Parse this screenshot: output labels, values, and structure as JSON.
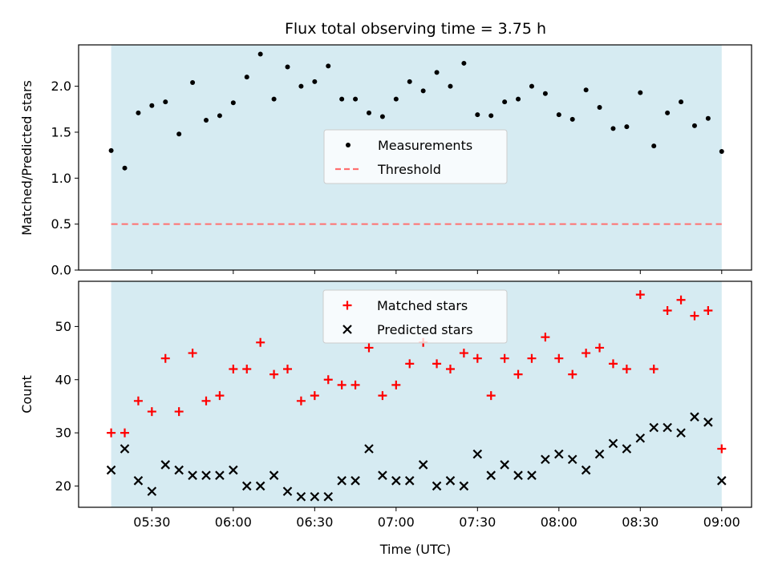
{
  "chart_data": {
    "type": "scatter",
    "title": "Flux total observing time = 3.75 h",
    "xlabel": "Time (UTC)",
    "x_tick_labels": [
      "05:30",
      "06:00",
      "06:30",
      "07:00",
      "07:30",
      "08:00",
      "08:30",
      "09:00"
    ],
    "x": [
      "05:15",
      "05:20",
      "05:25",
      "05:30",
      "05:35",
      "05:40",
      "05:45",
      "05:50",
      "05:55",
      "06:00",
      "06:05",
      "06:10",
      "06:15",
      "06:20",
      "06:25",
      "06:30",
      "06:35",
      "06:40",
      "06:45",
      "06:50",
      "06:55",
      "07:00",
      "07:05",
      "07:10",
      "07:15",
      "07:20",
      "07:25",
      "07:30",
      "07:35",
      "07:40",
      "07:45",
      "07:50",
      "07:55",
      "08:00",
      "08:05",
      "08:10",
      "08:15",
      "08:20",
      "08:25",
      "08:30",
      "08:35",
      "08:40",
      "08:45",
      "08:50",
      "08:55",
      "09:00"
    ],
    "xlim": [
      "05:03",
      "09:11"
    ],
    "observing_span": [
      "05:15",
      "09:00"
    ],
    "panels": [
      {
        "ylabel": "Matched/Predicted stars",
        "ylim": [
          0,
          2.45
        ],
        "y_ticks": [
          "0.0",
          "0.5",
          "1.0",
          "1.5",
          "2.0"
        ],
        "legend_position": "center",
        "series": [
          {
            "name": "Measurements",
            "marker": "dot",
            "color": "#000000",
            "values": [
              1.3,
              1.11,
              1.71,
              1.79,
              1.83,
              1.48,
              2.04,
              1.63,
              1.68,
              1.82,
              2.1,
              2.35,
              1.86,
              2.21,
              2.0,
              2.05,
              2.22,
              1.86,
              1.86,
              1.71,
              1.67,
              1.86,
              2.05,
              1.95,
              2.15,
              2.0,
              2.25,
              1.69,
              1.68,
              1.83,
              1.86,
              2.0,
              1.92,
              1.69,
              1.64,
              1.96,
              1.77,
              1.54,
              1.56,
              1.93,
              1.35,
              1.71,
              1.83,
              1.57,
              1.65,
              1.29
            ]
          },
          {
            "name": "Threshold",
            "marker": "dashed-line",
            "color": "#ff7070",
            "values": [
              0.5
            ]
          }
        ]
      },
      {
        "ylabel": "Count",
        "ylim": [
          16,
          58.5
        ],
        "y_ticks": [
          "20",
          "30",
          "40",
          "50"
        ],
        "legend_position": "upper center",
        "series": [
          {
            "name": "Matched stars",
            "marker": "plus",
            "color": "#ff0000",
            "values": [
              30,
              30,
              36,
              34,
              44,
              34,
              45,
              36,
              37,
              42,
              42,
              47,
              41,
              42,
              36,
              37,
              40,
              39,
              39,
              46,
              37,
              39,
              43,
              47,
              43,
              42,
              45,
              44,
              37,
              44,
              41,
              44,
              48,
              44,
              41,
              45,
              46,
              43,
              42,
              56,
              42,
              53,
              55,
              52,
              53,
              27
            ]
          },
          {
            "name": "Predicted stars",
            "marker": "x",
            "color": "#000000",
            "values": [
              23,
              27,
              21,
              19,
              24,
              23,
              22,
              22,
              22,
              23,
              20,
              20,
              22,
              19,
              18,
              18,
              18,
              21,
              21,
              27,
              22,
              21,
              21,
              24,
              20,
              21,
              20,
              26,
              22,
              24,
              22,
              22,
              25,
              26,
              25,
              23,
              26,
              28,
              27,
              29,
              31,
              31,
              30,
              33,
              32,
              21
            ]
          }
        ]
      }
    ],
    "colors": {
      "span_fill": "#add8e6",
      "axes_frame": "#000000"
    }
  }
}
